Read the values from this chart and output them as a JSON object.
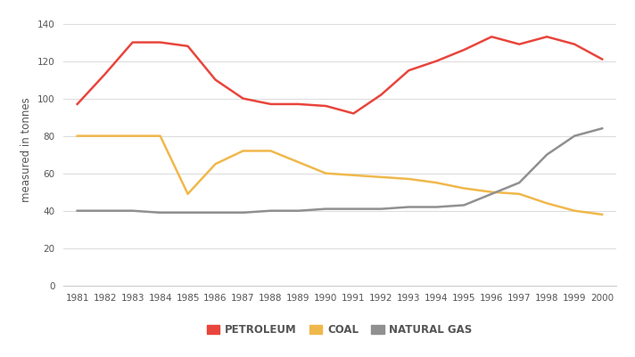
{
  "years": [
    1981,
    1982,
    1983,
    1984,
    1985,
    1986,
    1987,
    1988,
    1989,
    1990,
    1991,
    1992,
    1993,
    1994,
    1995,
    1996,
    1997,
    1998,
    1999,
    2000
  ],
  "petroleum": [
    97,
    113,
    130,
    130,
    128,
    110,
    100,
    97,
    97,
    96,
    92,
    102,
    115,
    120,
    126,
    133,
    129,
    133,
    129,
    121
  ],
  "coal": [
    80,
    80,
    80,
    80,
    49,
    65,
    72,
    72,
    66,
    60,
    59,
    58,
    57,
    55,
    52,
    50,
    49,
    44,
    40,
    38
  ],
  "natural_gas": [
    40,
    40,
    40,
    39,
    39,
    39,
    39,
    40,
    40,
    41,
    41,
    41,
    42,
    42,
    43,
    49,
    55,
    70,
    80,
    84
  ],
  "petroleum_color": "#e8453c",
  "coal_color": "#f0b84b",
  "natural_gas_color": "#909090",
  "ylabel": "measured in tonnes",
  "ylim": [
    0,
    145
  ],
  "yticks": [
    0,
    20,
    40,
    60,
    80,
    100,
    120,
    140
  ],
  "xlim": [
    1981,
    2000
  ],
  "background_color": "#ffffff",
  "grid_color": "#dddddd",
  "legend_labels": [
    "PETROLEUM",
    "COAL",
    "NATURAL GAS"
  ],
  "line_width": 1.8
}
